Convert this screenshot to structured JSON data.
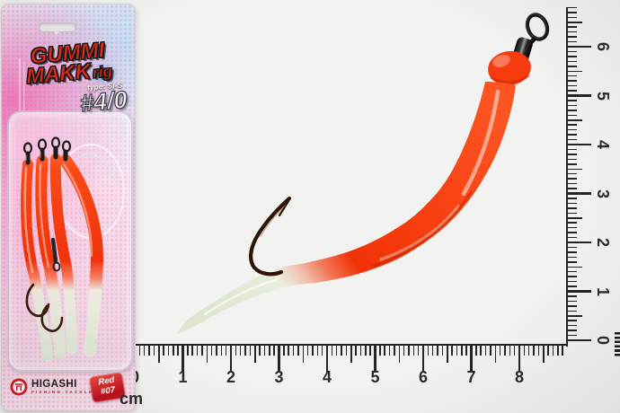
{
  "package": {
    "brand_line1": "GUMMI",
    "brand_line2": "MAKK",
    "brand_suffix": "rig",
    "type_label": "type: SI-S",
    "size_label": "#4/0",
    "brand_footer": "HIGASHI",
    "brand_footer_sub": "FISHING TACKLE",
    "color_badge": {
      "line1": "Red",
      "line2": "#07"
    }
  },
  "rulers": {
    "unit_label": "cm",
    "horizontal": {
      "labels": [
        "0",
        "1",
        "2",
        "3",
        "4",
        "5",
        "6",
        "7",
        "8"
      ]
    },
    "vertical": {
      "labels": [
        "0",
        "1",
        "2",
        "3",
        "4",
        "5",
        "6"
      ]
    }
  },
  "colors": {
    "lure_red": "#f23508",
    "tail_glow": "#e6edda",
    "hook_bronze": "#2e1306",
    "brand_red": "#e62b1e",
    "rig_blue": "#48a0ec",
    "badge_red": "#cf1f28",
    "ruler_ink": "#2b2b2b",
    "background": "#f2f2f0"
  }
}
